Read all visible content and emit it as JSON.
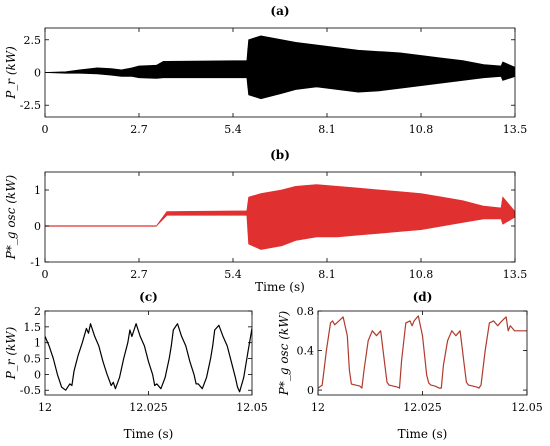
{
  "chart_data": [
    {
      "id": "a",
      "type": "line",
      "title": "(a)",
      "xlabel": "",
      "ylabel": "P_r (kW)",
      "xlim": [
        0,
        13.5
      ],
      "ylim": [
        -3.4,
        3.4
      ],
      "x_ticks": [
        "0",
        "2.7",
        "5.4",
        "8.1",
        "10.8",
        "13.5"
      ],
      "x_tick_values": [
        0,
        2.7,
        5.4,
        8.1,
        10.8,
        13.5
      ],
      "y_ticks": [
        "2.5",
        "0",
        "-2.5"
      ],
      "y_tick_values": [
        2.5,
        0,
        -2.5
      ],
      "series": [
        {
          "color": "#000000",
          "envelope": {
            "x": [
              0,
              0.6,
              1.0,
              1.5,
              1.9,
              2.2,
              2.5,
              2.7,
              3.2,
              3.4,
              3.5,
              5.8,
              5.85,
              6.2,
              6.8,
              7.2,
              7.8,
              8.4,
              9.0,
              9.6,
              10.2,
              10.8,
              11.4,
              12.0,
              12.6,
              13.1,
              13.15,
              13.5
            ],
            "upper": [
              0,
              0.05,
              0.2,
              0.35,
              0.3,
              0.2,
              0.35,
              0.5,
              0.55,
              0.85,
              0.85,
              0.9,
              2.5,
              2.8,
              2.5,
              2.3,
              2.1,
              1.9,
              1.7,
              1.6,
              1.5,
              1.3,
              1.1,
              0.9,
              0.6,
              0.5,
              0.8,
              0.4
            ],
            "lower": [
              0,
              -0.05,
              -0.05,
              -0.1,
              -0.2,
              -0.3,
              -0.3,
              -0.4,
              -0.45,
              -0.4,
              -0.4,
              -0.4,
              -1.7,
              -2.0,
              -1.6,
              -1.3,
              -1.1,
              -1.3,
              -1.5,
              -1.4,
              -1.2,
              -1.0,
              -0.8,
              -0.6,
              -0.4,
              -0.3,
              -0.6,
              -0.3
            ]
          }
        }
      ]
    },
    {
      "id": "b",
      "type": "line",
      "title": "(b)",
      "xlabel": "Time (s)",
      "ylabel": "P*_g osc (kW)",
      "xlim": [
        0,
        13.5
      ],
      "ylim": [
        -1,
        1.5
      ],
      "x_ticks": [
        "0",
        "2.7",
        "5.4",
        "8.1",
        "10.8",
        "13.5"
      ],
      "x_tick_values": [
        0,
        2.7,
        5.4,
        8.1,
        10.8,
        13.5
      ],
      "y_ticks": [
        "1",
        "0",
        "-1"
      ],
      "y_tick_values": [
        1,
        0,
        -1
      ],
      "series": [
        {
          "color": "#e03030",
          "envelope": {
            "x": [
              0,
              3.2,
              3.5,
              5.8,
              5.85,
              6.2,
              6.8,
              7.2,
              7.8,
              8.4,
              9.0,
              9.6,
              10.2,
              10.8,
              11.4,
              12.0,
              12.6,
              13.1,
              13.15,
              13.5
            ],
            "upper": [
              0,
              0,
              0.4,
              0.42,
              0.8,
              0.9,
              1.0,
              1.1,
              1.15,
              1.1,
              1.05,
              1.0,
              0.95,
              0.9,
              0.8,
              0.7,
              0.55,
              0.5,
              0.8,
              0.4
            ],
            "lower": [
              0,
              0,
              0.3,
              0.3,
              -0.5,
              -0.65,
              -0.55,
              -0.4,
              -0.3,
              -0.3,
              -0.25,
              -0.2,
              -0.15,
              -0.1,
              0.0,
              0.1,
              0.2,
              0.2,
              0.05,
              0.25
            ]
          }
        }
      ]
    },
    {
      "id": "c",
      "type": "line",
      "title": "(c)",
      "xlabel": "Time (s)",
      "ylabel": "P_r (kW)",
      "xlim": [
        12,
        12.05
      ],
      "ylim": [
        -0.65,
        2
      ],
      "x_ticks": [
        "12",
        "12.025",
        "12.05"
      ],
      "x_tick_values": [
        12,
        12.025,
        12.05
      ],
      "y_ticks": [
        "2",
        "1.5",
        "1",
        "0.5",
        "0",
        "-0.5"
      ],
      "y_tick_values": [
        2,
        1.5,
        1,
        0.5,
        0,
        -0.5
      ],
      "series": [
        {
          "color": "#000000",
          "x": [
            12.0,
            12.001,
            12.002,
            12.003,
            12.004,
            12.005,
            12.006,
            12.0065,
            12.007,
            12.008,
            12.009,
            12.01,
            12.0105,
            12.011,
            12.012,
            12.013,
            12.014,
            12.015,
            12.016,
            12.0165,
            12.017,
            12.018,
            12.019,
            12.02,
            12.0205,
            12.021,
            12.022,
            12.023,
            12.024,
            12.025,
            12.026,
            12.0265,
            12.027,
            12.028,
            12.029,
            12.03,
            12.0305,
            12.031,
            12.032,
            12.033,
            12.034,
            12.035,
            12.036,
            12.0365,
            12.037,
            12.038,
            12.039,
            12.04,
            12.0405,
            12.041,
            12.042,
            12.043,
            12.044,
            12.045,
            12.046,
            12.0465,
            12.047,
            12.048,
            12.049,
            12.05
          ],
          "y": [
            1.2,
            0.9,
            0.5,
            0.0,
            -0.4,
            -0.5,
            -0.3,
            -0.35,
            0.1,
            0.6,
            1.0,
            1.45,
            1.3,
            1.6,
            1.2,
            0.9,
            0.4,
            0.0,
            -0.35,
            -0.25,
            -0.45,
            -0.1,
            0.5,
            1.0,
            1.4,
            1.2,
            1.6,
            1.2,
            0.9,
            0.4,
            0.0,
            -0.35,
            -0.3,
            -0.45,
            -0.1,
            0.5,
            0.9,
            1.4,
            1.6,
            1.2,
            0.9,
            0.4,
            0.0,
            -0.3,
            -0.3,
            -0.45,
            -0.1,
            0.5,
            0.9,
            1.4,
            1.55,
            1.2,
            0.9,
            0.4,
            -0.1,
            -0.4,
            -0.55,
            -0.1,
            0.7,
            1.45
          ]
        }
      ]
    },
    {
      "id": "d",
      "type": "line",
      "title": "(d)",
      "xlabel": "Time (s)",
      "ylabel": "P*_g osc (kW)",
      "xlim": [
        12,
        12.05
      ],
      "ylim": [
        -0.05,
        0.8
      ],
      "x_ticks": [
        "12",
        "12.025",
        "12.05"
      ],
      "x_tick_values": [
        12,
        12.025,
        12.05
      ],
      "y_ticks": [
        "0.8",
        "0.4",
        "0"
      ],
      "y_tick_values": [
        0.8,
        0.4,
        0
      ],
      "series": [
        {
          "color": "#b03a2e",
          "x": [
            12.0,
            12.001,
            12.002,
            12.003,
            12.0035,
            12.004,
            12.005,
            12.006,
            12.007,
            12.0075,
            12.008,
            12.009,
            12.01,
            12.0105,
            12.011,
            12.012,
            12.013,
            12.014,
            12.015,
            12.016,
            12.0165,
            12.017,
            12.018,
            12.019,
            12.0195,
            12.02,
            12.021,
            12.022,
            12.0225,
            12.023,
            12.024,
            12.025,
            12.026,
            12.0265,
            12.027,
            12.028,
            12.029,
            12.0295,
            12.03,
            12.031,
            12.032,
            12.033,
            12.034,
            12.035,
            12.0355,
            12.036,
            12.037,
            12.038,
            12.0385,
            12.039,
            12.04,
            12.041,
            12.042,
            12.043,
            12.044,
            12.045,
            12.0455,
            12.046,
            12.047,
            12.048,
            12.049,
            12.05
          ],
          "y": [
            0.02,
            0.05,
            0.4,
            0.68,
            0.7,
            0.66,
            0.7,
            0.74,
            0.55,
            0.2,
            0.06,
            0.05,
            0.04,
            0.02,
            0.2,
            0.5,
            0.6,
            0.55,
            0.6,
            0.25,
            0.08,
            0.05,
            0.04,
            0.03,
            0.02,
            0.3,
            0.68,
            0.7,
            0.65,
            0.7,
            0.75,
            0.55,
            0.15,
            0.07,
            0.05,
            0.04,
            0.02,
            0.02,
            0.25,
            0.5,
            0.6,
            0.55,
            0.6,
            0.25,
            0.08,
            0.05,
            0.04,
            0.03,
            0.02,
            0.05,
            0.4,
            0.68,
            0.7,
            0.65,
            0.7,
            0.74,
            0.6,
            0.65,
            0.6,
            0.6,
            0.6,
            0.6
          ]
        }
      ]
    }
  ]
}
